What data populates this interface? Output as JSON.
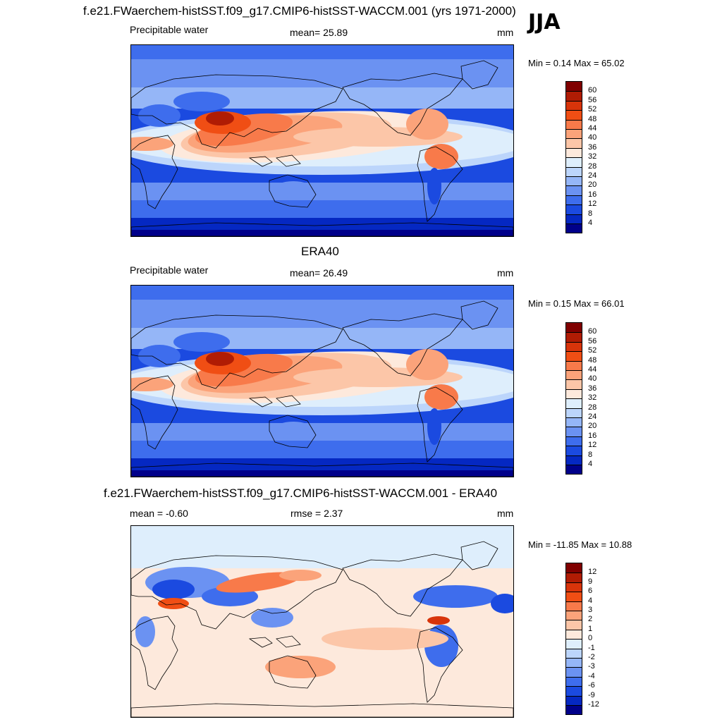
{
  "page": {
    "season": "JJA",
    "title": "f.e21.FWaerchem-histSST.f09_g17.CMIP6-histSST-WACCM.001 (yrs 1971-2000)"
  },
  "chart_data": [
    {
      "type": "heatmap",
      "title": "f.e21.FWaerchem-histSST.f09_g17.CMIP6-histSST-WACCM.001 (yrs 1971-2000)",
      "left_label": "Precipitable water",
      "center_label": "mean=  25.89",
      "units": "mm",
      "minmax": "Min =   0.14 Max =  65.02",
      "colorbar_levels": [
        "60",
        "56",
        "52",
        "48",
        "44",
        "40",
        "36",
        "32",
        "28",
        "24",
        "20",
        "16",
        "12",
        "8",
        "4"
      ],
      "colors": [
        "#800000",
        "#b01c04",
        "#d8340a",
        "#f04e14",
        "#f87a4a",
        "#fba37a",
        "#fcc6a8",
        "#fde9dc",
        "#deeefc",
        "#bcd5fb",
        "#95b6f7",
        "#6b92f2",
        "#3e6ded",
        "#1b4ae0",
        "#0528c2",
        "#00008a"
      ],
      "mean_value": 25.89
    },
    {
      "type": "heatmap",
      "title": "ERA40",
      "left_label": "Precipitable water",
      "center_label": "mean=  26.49",
      "units": "mm",
      "minmax": "Min =   0.15 Max =  66.01",
      "colorbar_levels": [
        "60",
        "56",
        "52",
        "48",
        "44",
        "40",
        "36",
        "32",
        "28",
        "24",
        "20",
        "16",
        "12",
        "8",
        "4"
      ],
      "colors": [
        "#800000",
        "#b01c04",
        "#d8340a",
        "#f04e14",
        "#f87a4a",
        "#fba37a",
        "#fcc6a8",
        "#fde9dc",
        "#deeefc",
        "#bcd5fb",
        "#95b6f7",
        "#6b92f2",
        "#3e6ded",
        "#1b4ae0",
        "#0528c2",
        "#00008a"
      ],
      "mean_value": 26.49
    },
    {
      "type": "heatmap",
      "title": "f.e21.FWaerchem-histSST.f09_g17.CMIP6-histSST-WACCM.001 - ERA40",
      "left_label": "mean =  -0.60",
      "center_label": "rmse =   2.37",
      "units": "mm",
      "minmax": "Min = -11.85 Max =  10.88",
      "colorbar_levels": [
        "12",
        "9",
        "6",
        "4",
        "3",
        "2",
        "1",
        "0",
        "-1",
        "-2",
        "-3",
        "-4",
        "-6",
        "-9",
        "-12"
      ],
      "colors": [
        "#800000",
        "#b01c04",
        "#d8340a",
        "#f04e14",
        "#f87a4a",
        "#fba37a",
        "#fcc6a8",
        "#fde9dc",
        "#deeefc",
        "#bcd5fb",
        "#95b6f7",
        "#6b92f2",
        "#3e6ded",
        "#1b4ae0",
        "#0528c2",
        "#00008a"
      ],
      "mean_value": -0.6,
      "rmse_value": 2.37
    }
  ]
}
